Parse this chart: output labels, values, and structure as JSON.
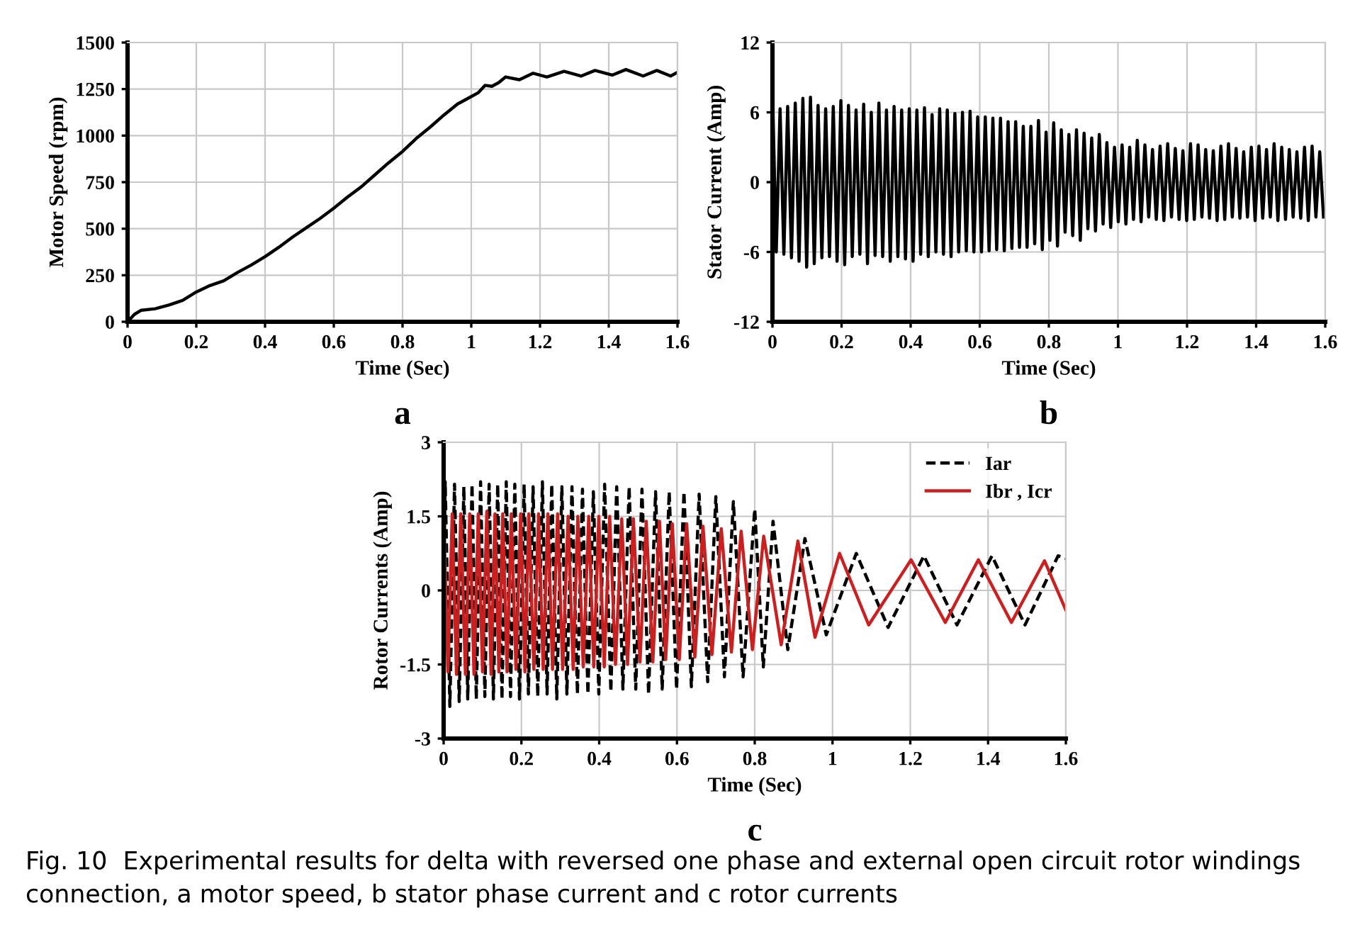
{
  "chart_data": [
    {
      "type": "line",
      "xlabel": "Time (Sec)",
      "ylabel": "Motor Speed (rpm)",
      "annotations": [
        "a"
      ],
      "xlim": [
        0,
        1.6
      ],
      "ylim": [
        0,
        1500
      ],
      "xticks": [
        0,
        0.2,
        0.4,
        0.6,
        0.8,
        1,
        1.2,
        1.4,
        1.6
      ],
      "yticks": [
        0,
        250,
        500,
        750,
        1000,
        1250,
        1500
      ],
      "grid": true,
      "legend": false,
      "marker": "none",
      "series": [
        {
          "color": "#000000",
          "line_style": "solid",
          "x": [
            0,
            0.02,
            0.04,
            0.08,
            0.12,
            0.16,
            0.2,
            0.24,
            0.28,
            0.32,
            0.36,
            0.4,
            0.44,
            0.48,
            0.52,
            0.56,
            0.6,
            0.64,
            0.68,
            0.72,
            0.76,
            0.8,
            0.84,
            0.88,
            0.92,
            0.96,
            1.0,
            1.02,
            1.04,
            1.06,
            1.08,
            1.1,
            1.14,
            1.18,
            1.22,
            1.27,
            1.32,
            1.36,
            1.41,
            1.45,
            1.5,
            1.54,
            1.58,
            1.6
          ],
          "values": [
            0,
            40,
            62,
            70,
            90,
            115,
            160,
            195,
            220,
            265,
            305,
            350,
            400,
            455,
            505,
            555,
            610,
            670,
            725,
            790,
            855,
            915,
            985,
            1045,
            1110,
            1170,
            1210,
            1230,
            1270,
            1265,
            1285,
            1315,
            1300,
            1335,
            1315,
            1345,
            1320,
            1350,
            1325,
            1355,
            1320,
            1350,
            1320,
            1340
          ]
        }
      ]
    },
    {
      "type": "line",
      "xlabel": "Time (Sec)",
      "ylabel": "Stator Current (Amp)",
      "annotations": [
        "b"
      ],
      "xlim": [
        0,
        1.6
      ],
      "ylim": [
        -12,
        12
      ],
      "xticks": [
        0,
        0.2,
        0.4,
        0.6,
        0.8,
        1,
        1.2,
        1.4,
        1.6
      ],
      "yticks": [
        -12,
        -6,
        0,
        6,
        12
      ],
      "grid": true,
      "legend": false,
      "marker": "none",
      "series": [
        {
          "color": "#000000",
          "line_style": "solid",
          "x": [
            0,
            0.011,
            0.022,
            0.033,
            0.044,
            0.055,
            0.066,
            0.077,
            0.088,
            0.099,
            0.11,
            0.121,
            0.132,
            0.143,
            0.154,
            0.165,
            0.176,
            0.187,
            0.198,
            0.209,
            0.22,
            0.231,
            0.242,
            0.253,
            0.264,
            0.275,
            0.286,
            0.297,
            0.308,
            0.319,
            0.33,
            0.341,
            0.352,
            0.363,
            0.374,
            0.385,
            0.396,
            0.407,
            0.418,
            0.429,
            0.44,
            0.451,
            0.462,
            0.473,
            0.484,
            0.495,
            0.506,
            0.517,
            0.528,
            0.539,
            0.55,
            0.561,
            0.572,
            0.583,
            0.594,
            0.605,
            0.616,
            0.627,
            0.638,
            0.649,
            0.66,
            0.671,
            0.682,
            0.693,
            0.704,
            0.715,
            0.726,
            0.737,
            0.748,
            0.759,
            0.77,
            0.781,
            0.792,
            0.803,
            0.814,
            0.825,
            0.836,
            0.847,
            0.858,
            0.869,
            0.88,
            0.891,
            0.902,
            0.913,
            0.924,
            0.935,
            0.946,
            0.957,
            0.968,
            0.979,
            0.99,
            1.001,
            1.012,
            1.023,
            1.034,
            1.045,
            1.056,
            1.067,
            1.078,
            1.089,
            1.1,
            1.111,
            1.122,
            1.133,
            1.144,
            1.155,
            1.166,
            1.177,
            1.188,
            1.199,
            1.21,
            1.221,
            1.232,
            1.243,
            1.254,
            1.265,
            1.276,
            1.287,
            1.298,
            1.309,
            1.32,
            1.331,
            1.342,
            1.353,
            1.364,
            1.375,
            1.386,
            1.397,
            1.408,
            1.419,
            1.43,
            1.441,
            1.452,
            1.463,
            1.474,
            1.485,
            1.496,
            1.507,
            1.518,
            1.529,
            1.54,
            1.551,
            1.562,
            1.573,
            1.584,
            1.595
          ],
          "values": [
            8,
            -6,
            6.3,
            -6.2,
            6.5,
            -6.5,
            6.8,
            -6.8,
            7.2,
            -7.3,
            7.3,
            -7.0,
            6.6,
            -6.5,
            6.3,
            -6.4,
            6.5,
            -6.8,
            7.0,
            -7.1,
            6.6,
            -6.4,
            6.2,
            -6.2,
            6.7,
            -7.0,
            6.0,
            -6.3,
            6.8,
            -6.4,
            6.2,
            -6.8,
            6.5,
            -6.4,
            6.2,
            -6.6,
            6.3,
            -6.8,
            6.2,
            -6.2,
            6.4,
            -6.4,
            5.8,
            -6.0,
            6.3,
            -6.2,
            6.2,
            -6.4,
            5.9,
            -6.0,
            6.0,
            -5.9,
            6.1,
            -6.0,
            5.6,
            -6.0,
            5.6,
            -5.9,
            5.5,
            -5.8,
            5.5,
            -5.9,
            5.2,
            -5.7,
            5.2,
            -5.6,
            4.8,
            -5.6,
            4.8,
            -5.3,
            5.3,
            -5.8,
            4.3,
            -5.0,
            5.1,
            -5.5,
            4.5,
            -4.3,
            4.1,
            -4.6,
            4.5,
            -5.0,
            4.2,
            -4.0,
            3.8,
            -4.2,
            4.1,
            -3.6,
            3.4,
            -3.9,
            3.0,
            -3.4,
            3.2,
            -3.6,
            3.0,
            -3.2,
            3.6,
            -3.4,
            3.2,
            -3.0,
            2.8,
            -3.2,
            3.1,
            -3.3,
            3.3,
            -3.0,
            2.9,
            -3.2,
            2.7,
            -3.3,
            3.3,
            -3.2,
            3.2,
            -3.0,
            2.8,
            -3.1,
            2.7,
            -3.3,
            3.1,
            -3.2,
            3.3,
            -3.0,
            2.9,
            -3.1,
            2.6,
            -3.0,
            3.0,
            -3.3,
            3.1,
            -3.1,
            2.8,
            -3.0,
            3.3,
            -3.3,
            3.0,
            -3.2,
            2.8,
            -3.0,
            2.6,
            -3.1,
            3.0,
            -3.3,
            3.1,
            -3.0,
            2.6,
            -3.0
          ]
        }
      ]
    },
    {
      "type": "line",
      "xlabel": "Time (Sec)",
      "ylabel": "Rotor Currents (Amp)",
      "annotations": [
        "c",
        "Fig. 10  Experimental results for delta with reversed one phase and external open circuit rotor windings connection, a motor speed, b stator phase current and c rotor currents"
      ],
      "xlim": [
        0,
        1.6
      ],
      "ylim": [
        -3,
        3
      ],
      "xticks": [
        0,
        0.2,
        0.4,
        0.6,
        0.8,
        1,
        1.2,
        1.4,
        1.6
      ],
      "yticks": [
        -3,
        -1.5,
        0,
        1.5,
        3
      ],
      "grid": true,
      "legend": "top right",
      "marker": "none",
      "series": [
        {
          "name": "Iar",
          "color": "#000000",
          "line_style": "dashed",
          "x": [
            0,
            0.004,
            0.016,
            0.028,
            0.04,
            0.052,
            0.062,
            0.073,
            0.084,
            0.095,
            0.106,
            0.117,
            0.128,
            0.139,
            0.15,
            0.161,
            0.172,
            0.183,
            0.195,
            0.207,
            0.218,
            0.23,
            0.242,
            0.254,
            0.266,
            0.278,
            0.291,
            0.304,
            0.317,
            0.33,
            0.344,
            0.357,
            0.371,
            0.385,
            0.399,
            0.414,
            0.43,
            0.445,
            0.461,
            0.477,
            0.494,
            0.51,
            0.527,
            0.545,
            0.562,
            0.58,
            0.599,
            0.618,
            0.637,
            0.657,
            0.679,
            0.7,
            0.722,
            0.745,
            0.77,
            0.8,
            0.822,
            0.847,
            0.885,
            0.929,
            0.984,
            1.061,
            1.143,
            1.235,
            1.32,
            1.41,
            1.495,
            1.58,
            1.6
          ],
          "values": [
            0,
            2.2,
            -2.35,
            2.15,
            -2.25,
            2.1,
            -2.2,
            2.15,
            -2.2,
            2.2,
            -2.15,
            2.15,
            -2.2,
            2.15,
            -2.2,
            2.2,
            -2.15,
            2.15,
            -2.2,
            2.15,
            -2.1,
            2.1,
            -2.15,
            2.2,
            -2.1,
            2.15,
            -2.2,
            2.1,
            -2.1,
            2.1,
            -2.1,
            2.05,
            -2.1,
            2.0,
            -2.1,
            2.15,
            -2.05,
            2.1,
            -2.0,
            2.1,
            -2.0,
            2.05,
            -2.1,
            2.0,
            -2.0,
            2.0,
            -2.0,
            2.0,
            -1.95,
            1.95,
            -1.85,
            1.9,
            -1.75,
            1.8,
            -1.75,
            1.65,
            -1.55,
            1.4,
            -1.2,
            1.05,
            -0.9,
            0.75,
            -0.75,
            0.7,
            -0.7,
            0.7,
            -0.7,
            0.7,
            0.65
          ]
        },
        {
          "name": "Ibr , Icr",
          "color": "#cc1f1f",
          "line_style": "solid",
          "x": [
            0,
            0.011,
            0.022,
            0.033,
            0.044,
            0.056,
            0.067,
            0.078,
            0.089,
            0.1,
            0.111,
            0.122,
            0.132,
            0.142,
            0.152,
            0.163,
            0.174,
            0.186,
            0.198,
            0.209,
            0.219,
            0.232,
            0.244,
            0.256,
            0.268,
            0.28,
            0.293,
            0.306,
            0.32,
            0.333,
            0.345,
            0.359,
            0.373,
            0.386,
            0.399,
            0.413,
            0.427,
            0.442,
            0.458,
            0.473,
            0.488,
            0.505,
            0.521,
            0.538,
            0.555,
            0.571,
            0.588,
            0.606,
            0.625,
            0.646,
            0.667,
            0.69,
            0.714,
            0.74,
            0.765,
            0.794,
            0.823,
            0.868,
            0.911,
            0.955,
            1.018,
            1.093,
            1.202,
            1.29,
            1.375,
            1.46,
            1.545,
            1.6
          ],
          "values": [
            1.6,
            -1.65,
            1.55,
            -1.7,
            1.55,
            -1.7,
            1.55,
            -1.7,
            1.55,
            -1.65,
            1.6,
            -1.7,
            1.55,
            -1.65,
            1.55,
            -1.65,
            1.55,
            -1.6,
            1.55,
            -1.65,
            1.55,
            -1.6,
            1.55,
            -1.6,
            1.55,
            -1.6,
            1.55,
            -1.6,
            1.5,
            -1.6,
            1.5,
            -1.55,
            1.5,
            -1.55,
            1.5,
            -1.55,
            1.5,
            -1.5,
            1.45,
            -1.5,
            1.45,
            -1.45,
            1.4,
            -1.45,
            1.4,
            -1.4,
            1.35,
            -1.4,
            1.35,
            -1.35,
            1.3,
            -1.3,
            1.25,
            -1.25,
            1.2,
            -1.2,
            1.1,
            -1.1,
            1.0,
            -0.95,
            0.75,
            -0.7,
            0.62,
            -0.65,
            0.62,
            -0.65,
            0.6,
            -0.4
          ]
        }
      ]
    }
  ]
}
